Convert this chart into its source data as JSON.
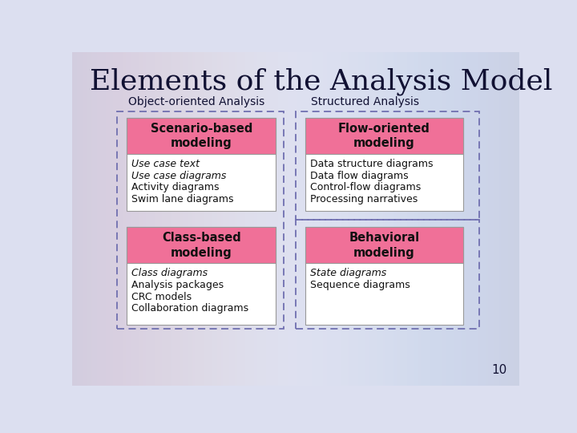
{
  "title": "Elements of the Analysis Model",
  "title_fontsize": 26,
  "title_font": "serif",
  "bg_color": "#dcdff0",
  "col1_label": "Object-oriented Analysis",
  "col2_label": "Structured Analysis",
  "label_fontsize": 10,
  "boxes": [
    {
      "id": "scenario",
      "header": "Scenario-based\nmodeling",
      "items": [
        "Use case text",
        "Use case diagrams",
        "Activity diagrams",
        "Swim lane diagrams"
      ],
      "items_italic": [
        true,
        true,
        false,
        false
      ],
      "col": 0,
      "row": 0,
      "header_color": "#f07098",
      "bg_color": "#ffffff"
    },
    {
      "id": "flow",
      "header": "Flow-oriented\nmodeling",
      "items": [
        "Data structure diagrams",
        "Data flow diagrams",
        "Control-flow diagrams",
        "Processing narratives"
      ],
      "items_italic": [
        false,
        false,
        false,
        false
      ],
      "col": 1,
      "row": 0,
      "header_color": "#f07098",
      "bg_color": "#ffffff"
    },
    {
      "id": "class",
      "header": "Class-based\nmodeling",
      "items": [
        "Class diagrams",
        "Analysis packages",
        "CRC models",
        "Collaboration diagrams"
      ],
      "items_italic": [
        true,
        false,
        false,
        false
      ],
      "col": 0,
      "row": 1,
      "header_color": "#f07098",
      "bg_color": "#ffffff"
    },
    {
      "id": "behavioral",
      "header": "Behavioral\nmodeling",
      "items": [
        "State diagrams",
        "Sequence diagrams"
      ],
      "items_italic": [
        true,
        false
      ],
      "col": 1,
      "row": 1,
      "header_color": "#f07098",
      "bg_color": "#ffffff"
    }
  ],
  "dash_color": "#7070b0",
  "border_color": "#999999",
  "text_color": "#111133",
  "page_number": "10"
}
